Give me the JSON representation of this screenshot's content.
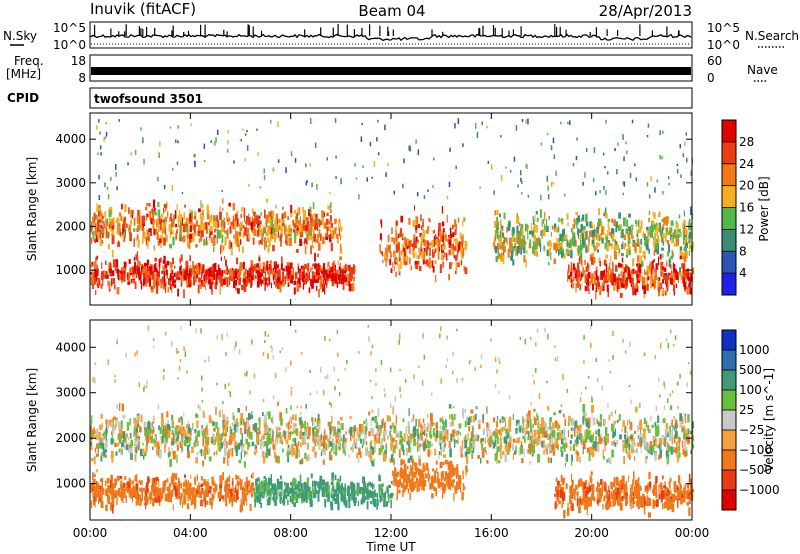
{
  "header": {
    "radar": "Inuvik (fitACF)",
    "beam": "Beam 04",
    "date": "28/Apr/2013"
  },
  "strips": {
    "nsky_label": "N.Sky",
    "nsky_ticks": [
      "10^5",
      "10^0"
    ],
    "nsearch_label": "N.Search",
    "nsearch_ticks": [
      "10^5",
      "10^0"
    ],
    "freq_label_1": "Freq.",
    "freq_label_2": "[MHz]",
    "freq_ticks": [
      "18",
      "8"
    ],
    "nave_label": "Nave",
    "nave_ticks": [
      "60",
      "0"
    ],
    "cpid_label": "CPID",
    "cpid_value": "twofsound 3501"
  },
  "chart_data": [
    {
      "type": "heatmap",
      "quantity": "Power",
      "ylabel": "Slant Range [km]",
      "xlabel": "",
      "ylim": [
        200,
        4600
      ],
      "xlim": [
        "00:00",
        "24:00"
      ],
      "y_ticks": [
        1000,
        2000,
        3000,
        4000
      ],
      "colorbar": {
        "label": "Power [dB]",
        "range": [
          0,
          32
        ],
        "ticks": [
          4,
          8,
          12,
          16,
          20,
          24,
          28
        ],
        "colors": [
          "#1e22e6",
          "#2a55b4",
          "#3a8c73",
          "#52b84a",
          "#f2b020",
          "#f07a18",
          "#ec3d14",
          "#e00000"
        ]
      },
      "echo_bands_km": [
        {
          "from_hour": 0,
          "to_hour": 10,
          "center_km": 2050,
          "width_km": 650,
          "power_db": 22
        },
        {
          "from_hour": 0,
          "to_hour": 10.5,
          "center_km": 950,
          "width_km": 450,
          "power_db": 28
        },
        {
          "from_hour": 11.5,
          "to_hour": 15,
          "center_km": 1650,
          "width_km": 900,
          "power_db": 24
        },
        {
          "from_hour": 16,
          "to_hour": 24,
          "center_km": 1800,
          "width_km": 800,
          "power_db": 16
        },
        {
          "from_hour": 19,
          "to_hour": 24,
          "center_km": 900,
          "width_km": 500,
          "power_db": 26
        }
      ]
    },
    {
      "type": "heatmap",
      "quantity": "Velocity",
      "ylabel": "Slant Range [km]",
      "xlabel": "Time UT",
      "ylim": [
        200,
        4600
      ],
      "xlim": [
        "00:00",
        "24:00"
      ],
      "y_ticks": [
        1000,
        2000,
        3000,
        4000
      ],
      "x_ticks": [
        "00:00",
        "04:00",
        "08:00",
        "12:00",
        "16:00",
        "20:00",
        "00:00"
      ],
      "colorbar": {
        "label": "Velocity [m s^-1]",
        "range": [
          -1250,
          1250
        ],
        "ticks": [
          "1000",
          "500",
          "100",
          "25",
          "−25",
          "−100",
          "−500",
          "−1000"
        ],
        "colors": [
          "#1030c0",
          "#2f6fb0",
          "#3f9a78",
          "#66c040",
          "#c8c8c8",
          "#f5a03a",
          "#f07818",
          "#e83c14",
          "#e00000"
        ]
      },
      "echo_bands_km": [
        {
          "from_hour": 0,
          "to_hour": 24,
          "center_km": 2100,
          "width_km": 750,
          "velocity_ms": 0
        },
        {
          "from_hour": 0,
          "to_hour": 6.5,
          "center_km": 900,
          "width_km": 450,
          "velocity_ms": -400
        },
        {
          "from_hour": 6.5,
          "to_hour": 12,
          "center_km": 900,
          "width_km": 400,
          "velocity_ms": 200
        },
        {
          "from_hour": 12,
          "to_hour": 15,
          "center_km": 1200,
          "width_km": 500,
          "velocity_ms": -300
        },
        {
          "from_hour": 18.5,
          "to_hour": 24,
          "center_km": 850,
          "width_km": 500,
          "velocity_ms": -400
        }
      ]
    }
  ]
}
